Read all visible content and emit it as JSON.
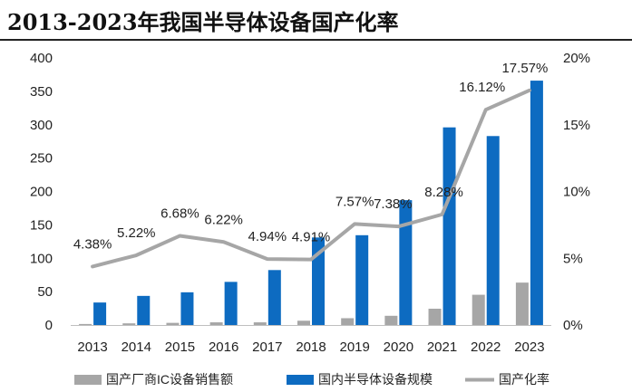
{
  "title": "2013-2023年我国半导体设备国产化率",
  "chart_data": {
    "type": "bar-line",
    "categories": [
      "2013",
      "2014",
      "2015",
      "2016",
      "2017",
      "2018",
      "2019",
      "2020",
      "2021",
      "2022",
      "2023"
    ],
    "series": [
      {
        "name": "国产厂商IC设备销售额",
        "type": "bar",
        "axis": "left",
        "color": "#a6a6a6",
        "values": [
          1.5,
          2.5,
          3.2,
          4,
          4,
          6.4,
          10.2,
          13.8,
          24.4,
          45.3,
          63.5
        ]
      },
      {
        "name": "国内半导体设备规模",
        "type": "bar",
        "axis": "left",
        "color": "#0d6bc1",
        "values": [
          33.7,
          43.6,
          49,
          64.6,
          82.3,
          131.1,
          134.5,
          187,
          296,
          283,
          366
        ]
      },
      {
        "name": "国产化率",
        "type": "line",
        "axis": "right",
        "color": "#a6a6a6",
        "values": [
          4.38,
          5.22,
          6.68,
          6.22,
          4.94,
          4.91,
          7.57,
          7.38,
          8.28,
          16.12,
          17.57
        ],
        "labels": [
          "4.38%",
          "5.22%",
          "6.68%",
          "6.22%",
          "4.94%",
          "4.91%",
          "7.57%",
          "7.38%",
          "8.28%",
          "16.12%",
          "17.57%"
        ]
      }
    ],
    "y_left": {
      "min": 0,
      "max": 400,
      "ticks": [
        "0",
        "50",
        "100",
        "150",
        "200",
        "250",
        "300",
        "350",
        "400"
      ]
    },
    "y_right": {
      "min": 0,
      "max": 20,
      "ticks": [
        "0%",
        "5%",
        "10%",
        "15%",
        "20%"
      ]
    },
    "grid": false,
    "legend_position": "bottom"
  }
}
